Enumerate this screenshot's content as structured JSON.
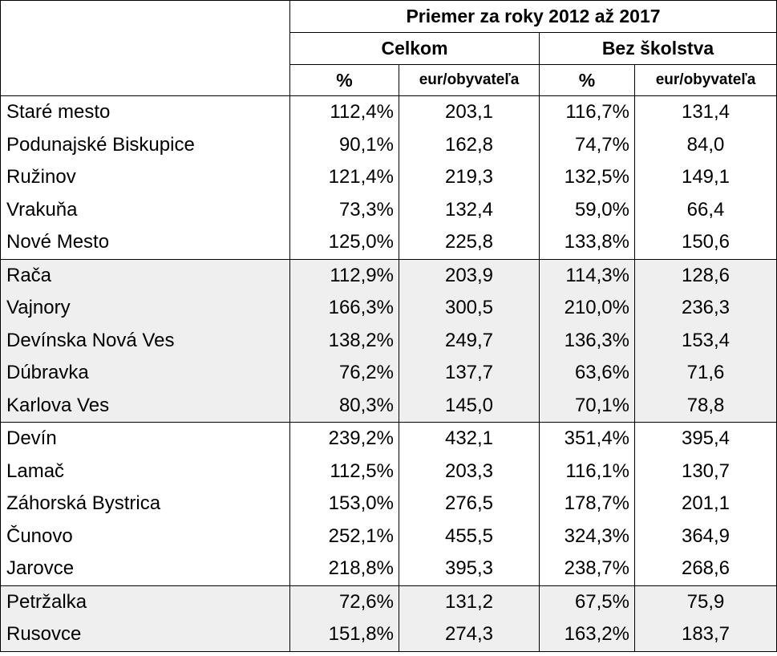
{
  "header": {
    "title": "Priemer za roky 2012 až 2017",
    "group_total": "Celkom",
    "group_without_schools": "Bez školstva",
    "col_pct": "%",
    "col_eur": "eur/obyvateľa"
  },
  "groups": [
    {
      "shaded": false,
      "rows": [
        {
          "name": "Staré mesto",
          "total_pct": "112,4%",
          "total_eur": "203,1",
          "bez_pct": "116,7%",
          "bez_eur": "131,4"
        },
        {
          "name": "Podunajské Biskupice",
          "total_pct": "90,1%",
          "total_eur": "162,8",
          "bez_pct": "74,7%",
          "bez_eur": "84,0"
        },
        {
          "name": "Ružinov",
          "total_pct": "121,4%",
          "total_eur": "219,3",
          "bez_pct": "132,5%",
          "bez_eur": "149,1"
        },
        {
          "name": "Vrakuňa",
          "total_pct": "73,3%",
          "total_eur": "132,4",
          "bez_pct": "59,0%",
          "bez_eur": "66,4"
        },
        {
          "name": "Nové Mesto",
          "total_pct": "125,0%",
          "total_eur": "225,8",
          "bez_pct": "133,8%",
          "bez_eur": "150,6"
        }
      ]
    },
    {
      "shaded": true,
      "rows": [
        {
          "name": "Rača",
          "total_pct": "112,9%",
          "total_eur": "203,9",
          "bez_pct": "114,3%",
          "bez_eur": "128,6"
        },
        {
          "name": "Vajnory",
          "total_pct": "166,3%",
          "total_eur": "300,5",
          "bez_pct": "210,0%",
          "bez_eur": "236,3"
        },
        {
          "name": "Devínska Nová Ves",
          "total_pct": "138,2%",
          "total_eur": "249,7",
          "bez_pct": "136,3%",
          "bez_eur": "153,4"
        },
        {
          "name": "Dúbravka",
          "total_pct": "76,2%",
          "total_eur": "137,7",
          "bez_pct": "63,6%",
          "bez_eur": "71,6"
        },
        {
          "name": "Karlova Ves",
          "total_pct": "80,3%",
          "total_eur": "145,0",
          "bez_pct": "70,1%",
          "bez_eur": "78,8"
        }
      ]
    },
    {
      "shaded": false,
      "rows": [
        {
          "name": "Devín",
          "total_pct": "239,2%",
          "total_eur": "432,1",
          "bez_pct": "351,4%",
          "bez_eur": "395,4"
        },
        {
          "name": "Lamač",
          "total_pct": "112,5%",
          "total_eur": "203,3",
          "bez_pct": "116,1%",
          "bez_eur": "130,7"
        },
        {
          "name": "Záhorská Bystrica",
          "total_pct": "153,0%",
          "total_eur": "276,5",
          "bez_pct": "178,7%",
          "bez_eur": "201,1"
        },
        {
          "name": "Čunovo",
          "total_pct": "252,1%",
          "total_eur": "455,5",
          "bez_pct": "324,3%",
          "bez_eur": "364,9"
        },
        {
          "name": "Jarovce",
          "total_pct": "218,8%",
          "total_eur": "395,3",
          "bez_pct": "238,7%",
          "bez_eur": "268,6"
        }
      ]
    },
    {
      "shaded": true,
      "rows": [
        {
          "name": "Petržalka",
          "total_pct": "72,6%",
          "total_eur": "131,2",
          "bez_pct": "67,5%",
          "bez_eur": "75,9"
        },
        {
          "name": "Rusovce",
          "total_pct": "151,8%",
          "total_eur": "274,3",
          "bez_pct": "163,2%",
          "bez_eur": "183,7"
        }
      ]
    }
  ]
}
